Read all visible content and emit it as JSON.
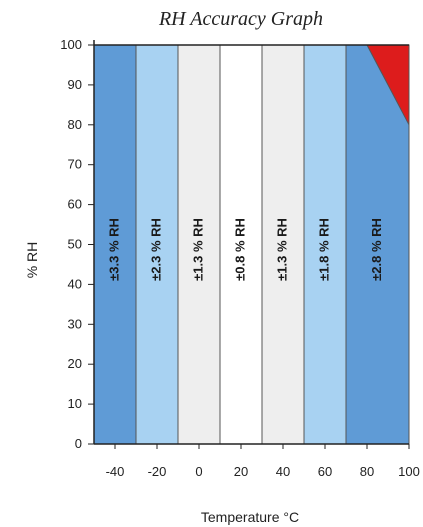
{
  "chart_data": {
    "type": "heatmap",
    "title": "RH Accuracy Graph",
    "xlabel": "Temperature °C",
    "ylabel": "% RH",
    "xlim": [
      -50,
      100
    ],
    "ylim": [
      0,
      100
    ],
    "x_ticks": [
      "-40",
      "-20",
      "0",
      "20",
      "40",
      "60",
      "80",
      "100"
    ],
    "x_tick_values": [
      -40,
      -20,
      0,
      20,
      40,
      60,
      80,
      100
    ],
    "y_ticks": [
      "0",
      "10",
      "20",
      "30",
      "40",
      "50",
      "60",
      "70",
      "80",
      "90",
      "100"
    ],
    "y_tick_values": [
      0,
      10,
      20,
      30,
      40,
      50,
      60,
      70,
      80,
      90,
      100
    ],
    "bands": [
      {
        "x_from": -50,
        "x_to": -30,
        "label": "±3.3 % RH",
        "color": "#5f9bd6"
      },
      {
        "x_from": -30,
        "x_to": -10,
        "label": "±2.3 % RH",
        "color": "#a8d2f2"
      },
      {
        "x_from": -10,
        "x_to": 10,
        "label": "±1.3 % RH",
        "color": "#eeeeee"
      },
      {
        "x_from": 10,
        "x_to": 30,
        "label": "±0.8 % RH",
        "color": "#ffffff"
      },
      {
        "x_from": 30,
        "x_to": 50,
        "label": "±1.3 % RH",
        "color": "#eeeeee"
      },
      {
        "x_from": 50,
        "x_to": 70,
        "label": "±1.8 % RH",
        "color": "#a8d2f2"
      },
      {
        "x_from": 70,
        "x_to": 100,
        "label": "±2.8 % RH",
        "color": "#5f9bd6"
      }
    ],
    "excluded_region": {
      "points": [
        [
          80,
          100
        ],
        [
          100,
          100
        ],
        [
          100,
          80
        ]
      ],
      "color": "#dd1c1c"
    },
    "grid": false
  }
}
